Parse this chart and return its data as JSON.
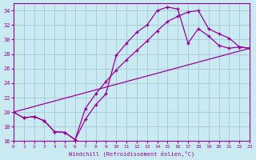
{
  "xlabel": "Windchill (Refroidissement éolien,°C)",
  "bg_color": "#c8eaf0",
  "grid_color": "#aaccdd",
  "line_color": "#990099",
  "xlim": [
    0,
    23
  ],
  "ylim": [
    16,
    35
  ],
  "yticks": [
    16,
    18,
    20,
    22,
    24,
    26,
    28,
    30,
    32,
    34
  ],
  "xticks": [
    0,
    1,
    2,
    3,
    4,
    5,
    6,
    7,
    8,
    9,
    10,
    11,
    12,
    13,
    14,
    15,
    16,
    17,
    18,
    19,
    20,
    21,
    22,
    23
  ],
  "series1_x": [
    0,
    1,
    2,
    3,
    4,
    5,
    6,
    7,
    8,
    9,
    10,
    11,
    12,
    13,
    14,
    15,
    16,
    17,
    18,
    19,
    20,
    21,
    22,
    23
  ],
  "series1_y": [
    20.0,
    19.2,
    19.4,
    18.8,
    17.3,
    17.2,
    16.2,
    19.0,
    21.0,
    22.5,
    27.8,
    29.5,
    31.0,
    32.0,
    34.0,
    34.5,
    34.2,
    29.5,
    31.5,
    30.5,
    29.2,
    28.8,
    29.0,
    28.8
  ],
  "series2_x": [
    0,
    1,
    2,
    3,
    4,
    5,
    6,
    7,
    8,
    9,
    10,
    11,
    12,
    13,
    14,
    15,
    16,
    17,
    18,
    19,
    20,
    21,
    22,
    23
  ],
  "series2_y": [
    20.0,
    19.2,
    19.4,
    18.8,
    17.3,
    17.2,
    16.2,
    20.5,
    22.5,
    24.2,
    25.8,
    27.2,
    28.5,
    29.8,
    31.2,
    32.5,
    33.2,
    33.8,
    34.0,
    31.5,
    30.8,
    30.2,
    29.0,
    28.8
  ],
  "series3_x": [
    0,
    23
  ],
  "series3_y": [
    20.0,
    28.8
  ]
}
